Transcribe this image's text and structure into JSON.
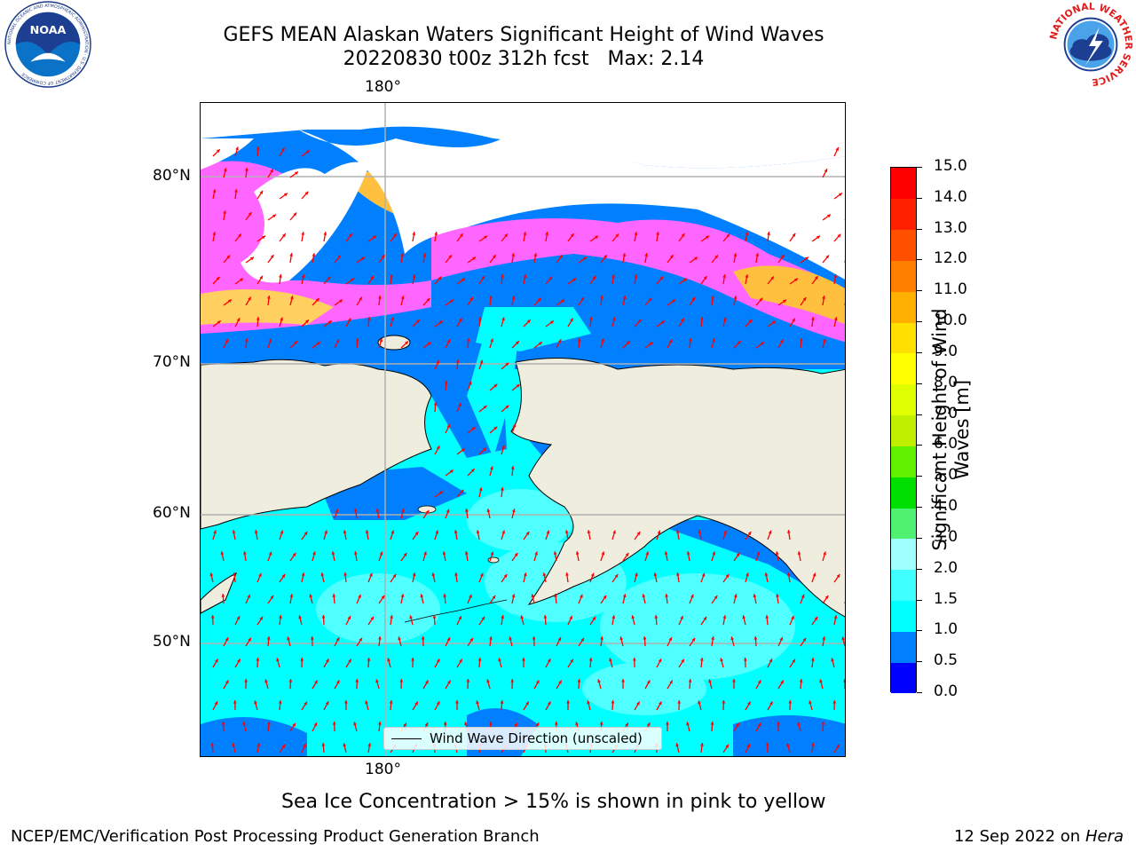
{
  "title": {
    "line1": "GEFS MEAN Alaskan Waters Significant Height of Wind Waves",
    "line2": "20220830 t00z 312h fcst   Max: 2.14"
  },
  "map": {
    "lon_label_top": "180°",
    "lon_label_bottom": "180°",
    "lat_labels": [
      "80°N",
      "70°N",
      "60°N",
      "50°N"
    ],
    "legend": "Wind Wave Direction (unscaled)",
    "arrow_color": "#ff0000",
    "land_color": "#efedde"
  },
  "colorbar": {
    "title": "Significant Height of Wind Waves [m]",
    "ticks": [
      "0.0",
      "0.5",
      "1.0",
      "1.5",
      "2.0",
      "3.0",
      "4.0",
      "5.0",
      "6.0",
      "7.0",
      "8.0",
      "9.0",
      "10.0",
      "11.0",
      "12.0",
      "13.0",
      "14.0",
      "15.0"
    ],
    "colors": [
      "#0000ff",
      "#0080ff",
      "#00ffff",
      "#40ffff",
      "#a0ffff",
      "#50f070",
      "#00e000",
      "#60f000",
      "#c0f000",
      "#e0ff00",
      "#ffff00",
      "#ffe000",
      "#ffb000",
      "#ff8000",
      "#ff5000",
      "#ff2000",
      "#ff0000"
    ]
  },
  "footer": {
    "note": "Sea Ice Concentration > 15% is shown in pink to yellow",
    "credit": "NCEP/EMC/Verification Post Processing Product Generation Branch",
    "date": "12 Sep 2022 on",
    "machine": "Hera"
  },
  "logos": {
    "noaa_text": "NOAA",
    "noaa_ring": "NATIONAL OCEANIC AND ATMOSPHERIC ADMINISTRATION · U.S. DEPARTMENT OF COMMERCE",
    "nws_ring": "NATIONAL WEATHER SERVICE"
  }
}
